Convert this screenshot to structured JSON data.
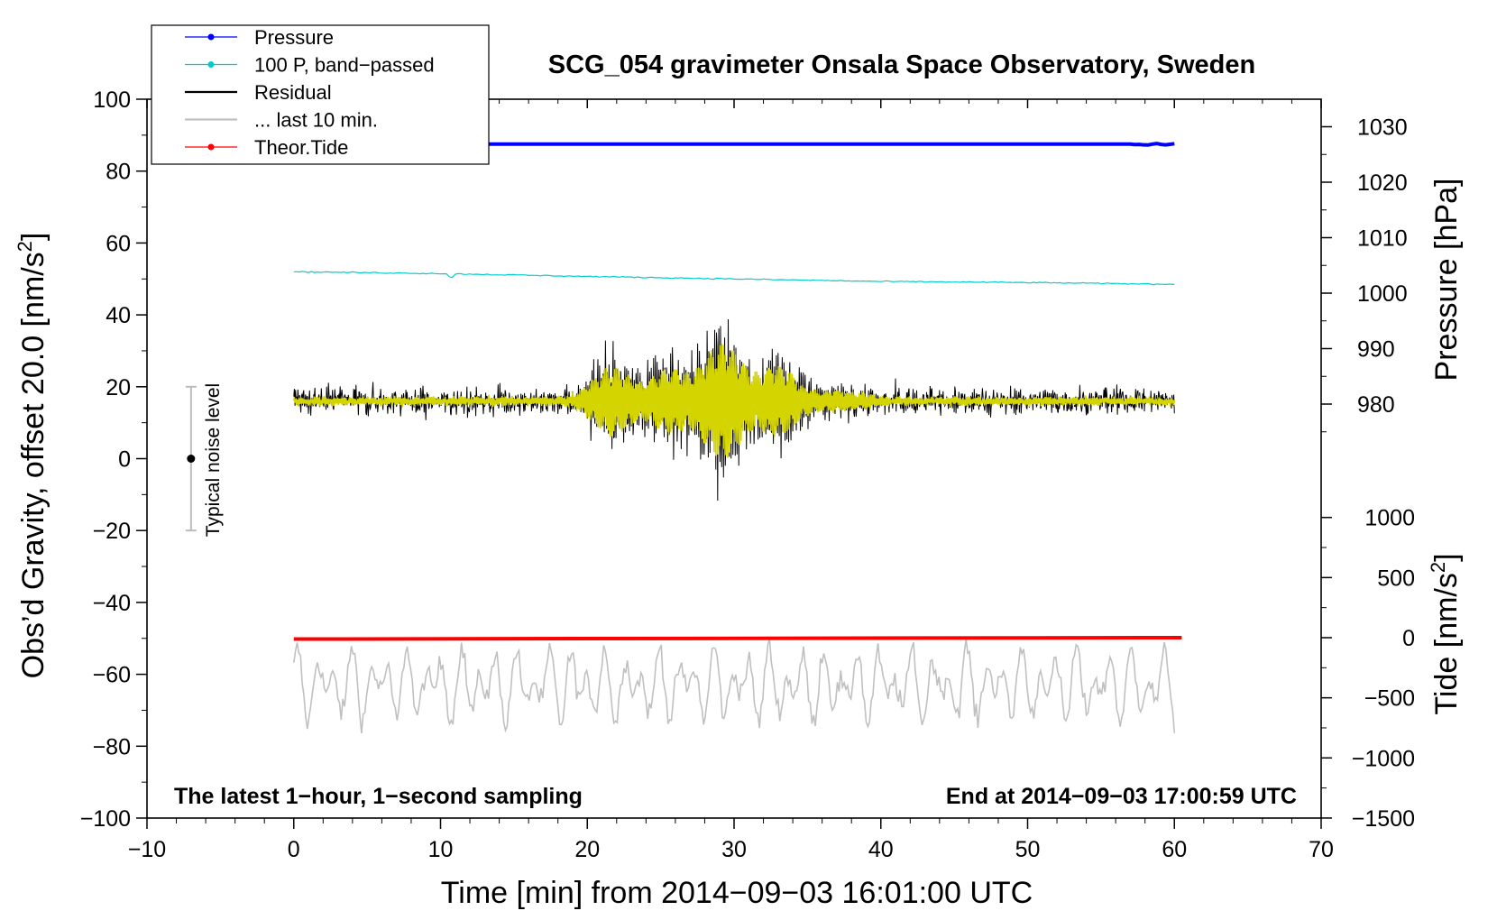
{
  "chart_data": {
    "type": "line",
    "title": "SCG_054 gravimeter Onsala Space Observatory, Sweden",
    "xlabel": "Time [min] from 2014−09−03 16:01:00 UTC",
    "ylabel_main": "Obs’d Gravity, offset 20.0 [nm/s",
    "ylabel_main_sup": "2",
    "ylabel_main_end": "]",
    "ylabel_pressure": "Pressure [hPa]",
    "ylabel_tide": "Tide [nm/s",
    "ylabel_tide_sup": "2",
    "ylabel_tide_end": "]",
    "xlim": [
      -10,
      70
    ],
    "ylim": [
      -100,
      100
    ],
    "x_ticks": [
      "−10",
      "0",
      "10",
      "20",
      "30",
      "40",
      "50",
      "60",
      "70"
    ],
    "y_ticks": [
      "−100",
      "−80",
      "−60",
      "−40",
      "−20",
      "0",
      "20",
      "40",
      "60",
      "80",
      "100"
    ],
    "pressure_axis": {
      "ticks": [
        "980",
        "990",
        "1000",
        "1010",
        "1020",
        "1030"
      ],
      "values": [
        980,
        990,
        1000,
        1010,
        1020,
        1030
      ]
    },
    "tide_axis": {
      "ticks": [
        "−1500",
        "−1000",
        "−500",
        "0",
        "500",
        "1000"
      ],
      "values": [
        -1500,
        -1000,
        -500,
        0,
        500,
        1000
      ]
    },
    "annotation_left": "The latest 1−hour, 1−second sampling",
    "annotation_right": "End at 2014−09−03 17:00:59 UTC",
    "noise_label": "Typical noise level",
    "noise_bar": {
      "x": -7,
      "center": 0,
      "low": -20,
      "high": 20
    },
    "legend": [
      {
        "label": "Pressure",
        "color": "#0000ff",
        "marker": true
      },
      {
        "label": "100 P, band−passed",
        "color": "#00cccc",
        "marker": true
      },
      {
        "label": "Residual",
        "color": "#000000",
        "marker": false
      },
      {
        "label": "... last 10 min.",
        "color": "#c0c0c0",
        "marker": false
      },
      {
        "label": "Theor.Tide",
        "color": "#ff0000",
        "marker": true
      }
    ],
    "series": [
      {
        "name": "Pressure",
        "color": "#0000ff",
        "axis": "left",
        "x_range": [
          0,
          60
        ],
        "approx_value": 87.5
      },
      {
        "name": "100 P, band−passed",
        "color": "#00cccc",
        "axis": "left",
        "x": [
          0,
          10,
          20,
          30,
          40,
          50,
          60
        ],
        "values": [
          52,
          51.5,
          50.7,
          50,
          49.3,
          49,
          48.5
        ]
      },
      {
        "name": "Residual",
        "color": "#000000",
        "axis": "left",
        "x_range": [
          0,
          60
        ],
        "baseline": 16,
        "note": "noisy trace, max ~60 at x~29, min ~-25 at x~29"
      },
      {
        "name": "Residual filtered",
        "color": "#d4d400",
        "axis": "left",
        "x_range": [
          0,
          60
        ],
        "baseline": 16
      },
      {
        "name": "... last 10 min.",
        "color": "#c0c0c0",
        "axis": "left",
        "x_range": [
          0,
          60
        ],
        "baseline": -63,
        "note": "range approx -80 to -48"
      },
      {
        "name": "Theor.Tide",
        "color": "#ff0000",
        "axis": "left",
        "x_range": [
          0,
          60.5
        ],
        "approx_value": -50
      }
    ]
  }
}
